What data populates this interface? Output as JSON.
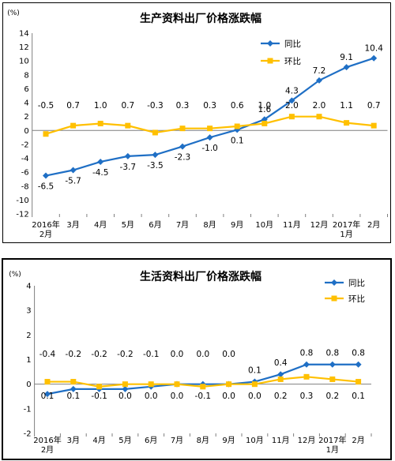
{
  "chart_data": [
    {
      "type": "line",
      "title": "生产资料出厂价格涨跌幅",
      "unit": "(%)",
      "categories": [
        "2016年2月",
        "3月",
        "4月",
        "5月",
        "6月",
        "7月",
        "8月",
        "9月",
        "10月",
        "11月",
        "12月",
        "2017年1月",
        "2月"
      ],
      "x_ticks": [
        [
          "2016年",
          "2月"
        ],
        [
          "3月"
        ],
        [
          "4月"
        ],
        [
          "5月"
        ],
        [
          "6月"
        ],
        [
          "7月"
        ],
        [
          "8月"
        ],
        [
          "9月"
        ],
        [
          "10月"
        ],
        [
          "11月"
        ],
        [
          "12月"
        ],
        [
          "2017年",
          "1月"
        ],
        [
          "2月"
        ]
      ],
      "ylim": [
        -12,
        14
      ],
      "yticks": [
        -12,
        -10,
        -8,
        -6,
        -4,
        -2,
        0,
        2,
        4,
        6,
        8,
        10,
        12,
        14
      ],
      "grid": false,
      "legend_position": "top-right",
      "series": [
        {
          "name": "同比",
          "color": "#1f6fc5",
          "marker": "diamond",
          "values": [
            -6.5,
            -5.7,
            -4.5,
            -3.7,
            -3.5,
            -2.3,
            -1.0,
            0.1,
            1.6,
            4.3,
            7.2,
            9.1,
            10.4
          ]
        },
        {
          "name": "环比",
          "color": "#ffc000",
          "marker": "square",
          "values": [
            -0.5,
            0.7,
            1.0,
            0.7,
            -0.3,
            0.3,
            0.3,
            0.6,
            1.0,
            2.0,
            2.0,
            1.1,
            0.7
          ]
        }
      ]
    },
    {
      "type": "line",
      "title": "生活资料出厂价格涨跌幅",
      "unit": "(%)",
      "categories": [
        "2016年2月",
        "3月",
        "4月",
        "5月",
        "6月",
        "7月",
        "8月",
        "9月",
        "10月",
        "11月",
        "12月",
        "2017年1月",
        "2月"
      ],
      "x_ticks": [
        [
          "2016年",
          "2月"
        ],
        [
          "3月"
        ],
        [
          "4月"
        ],
        [
          "5月"
        ],
        [
          "6月"
        ],
        [
          "7月"
        ],
        [
          "8月"
        ],
        [
          "9月"
        ],
        [
          "10月"
        ],
        [
          "11月"
        ],
        [
          "12月"
        ],
        [
          "2017年",
          "1月"
        ],
        [
          "2月"
        ]
      ],
      "ylim": [
        -2,
        4
      ],
      "yticks": [
        -2,
        -1,
        0,
        1,
        2,
        3,
        4
      ],
      "grid": false,
      "legend_position": "top-right",
      "series": [
        {
          "name": "同比",
          "color": "#1f6fc5",
          "marker": "diamond",
          "values": [
            -0.4,
            -0.2,
            -0.2,
            -0.2,
            -0.1,
            0.0,
            0.0,
            0.0,
            0.1,
            0.4,
            0.8,
            0.8,
            0.8
          ]
        },
        {
          "name": "环比",
          "color": "#ffc000",
          "marker": "square",
          "values": [
            0.1,
            0.1,
            -0.1,
            0.0,
            0.0,
            0.0,
            -0.1,
            0.0,
            0.0,
            0.2,
            0.3,
            0.2,
            0.1
          ]
        }
      ]
    }
  ]
}
